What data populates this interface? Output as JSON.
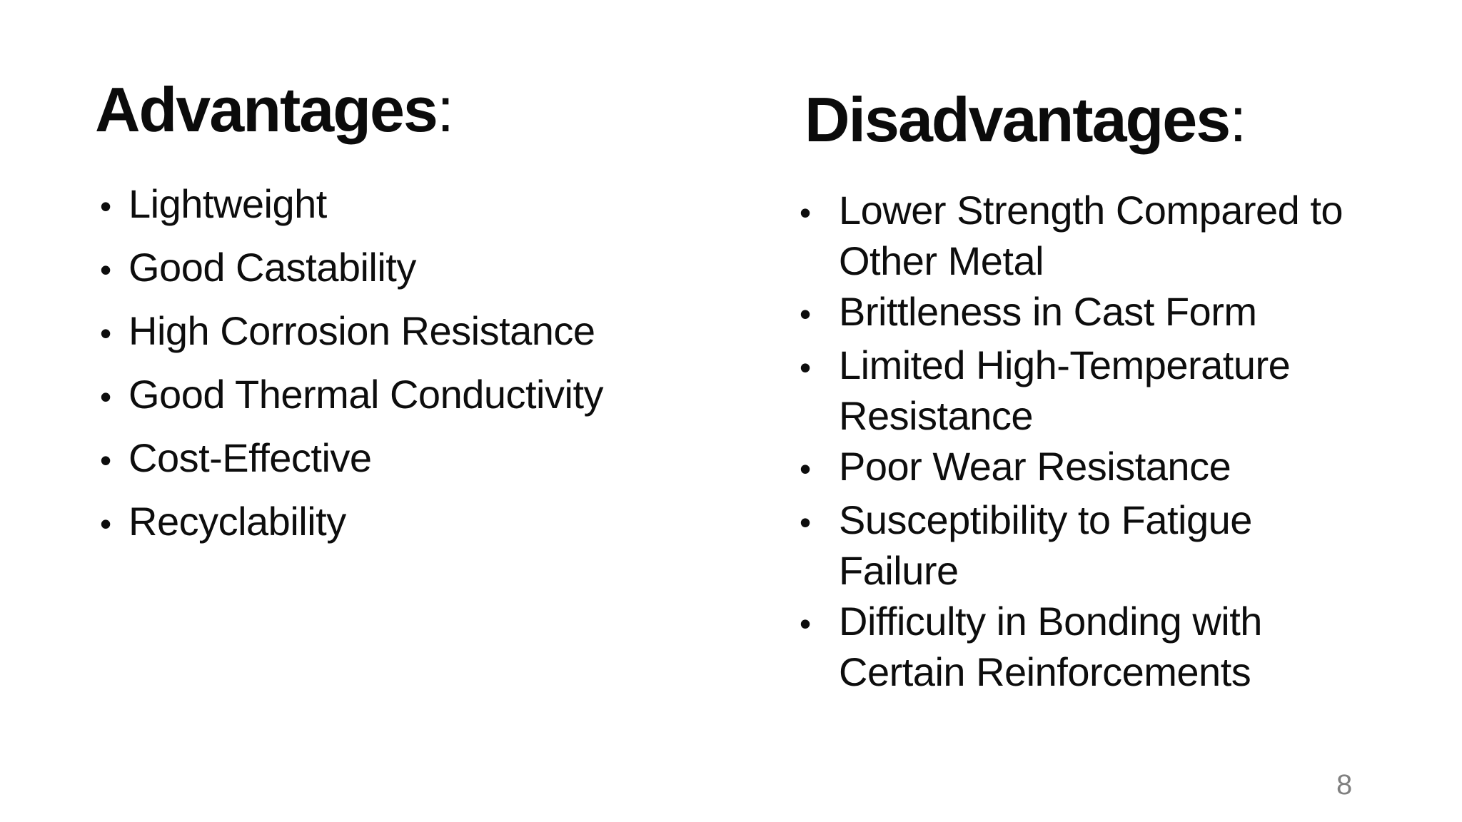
{
  "slide": {
    "background_color": "#ffffff",
    "text_color": "#0d0d0d",
    "page_number": "8",
    "page_number_color": "#808080",
    "bullet_char": "•"
  },
  "advantages": {
    "heading": "Advantages",
    "colon": ":",
    "items": [
      "Lightweight",
      "Good Castability",
      "High Corrosion Resistance",
      "Good Thermal Conductivity",
      "Cost-Effective",
      "Recyclability"
    ]
  },
  "disadvantages": {
    "heading": "Disadvantages",
    "colon": ":",
    "items": [
      "Lower Strength Compared to\nOther Metal",
      "Brittleness in Cast Form",
      "Limited High-Temperature\nResistance",
      "Poor Wear Resistance",
      "Susceptibility to Fatigue\nFailure",
      "Difficulty in Bonding with\nCertain Reinforcements"
    ]
  }
}
